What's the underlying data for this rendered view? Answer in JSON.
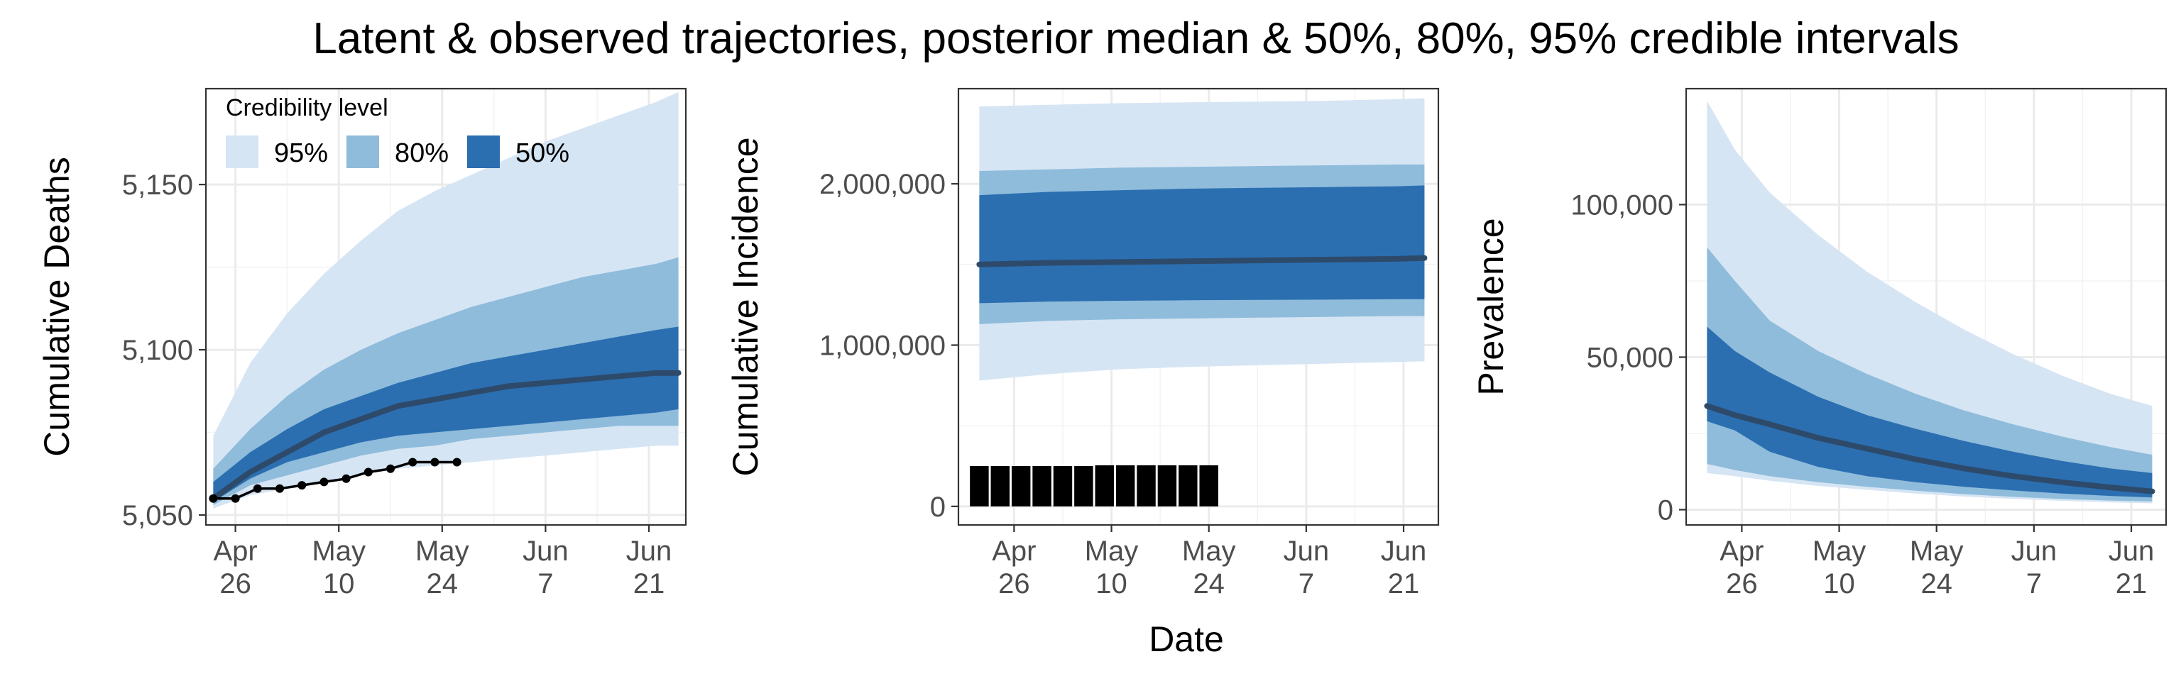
{
  "figure": {
    "title": "Latent & observed trajectories, posterior median & 50%, 80%, 95% credible intervals",
    "shared_xlabel": "Date"
  },
  "colors": {
    "ci95": "#d6e5f4",
    "ci80": "#8fbcdb",
    "ci50": "#2b6fb1",
    "median": "#2e4a6b",
    "observed": "#000000",
    "grid": "#ebebeb",
    "border": "#333333"
  },
  "legend": {
    "title": "Credibility level",
    "items": [
      {
        "label": "95%",
        "color_key": "ci95"
      },
      {
        "label": "80%",
        "color_key": "ci80"
      },
      {
        "label": "50%",
        "color_key": "ci50"
      }
    ]
  },
  "chart_data": [
    {
      "type": "area",
      "panel": "deaths",
      "xlabel": "",
      "ylabel": "Cumulative Deaths",
      "x_axis": "date",
      "xlim": [
        "2020-04-22",
        "2020-06-26"
      ],
      "xticks": [
        {
          "date": "2020-04-26",
          "label": [
            "Apr",
            "26"
          ]
        },
        {
          "date": "2020-05-10",
          "label": [
            "May",
            "10"
          ]
        },
        {
          "date": "2020-05-24",
          "label": [
            "May",
            "24"
          ]
        },
        {
          "date": "2020-06-07",
          "label": [
            "Jun",
            "7"
          ]
        },
        {
          "date": "2020-06-21",
          "label": [
            "Jun",
            "21"
          ]
        }
      ],
      "ylim": [
        5047,
        5179
      ],
      "yticks": [
        {
          "value": 5050,
          "label": "5,050"
        },
        {
          "value": 5100,
          "label": "5,100"
        },
        {
          "value": 5150,
          "label": "5,150"
        }
      ],
      "x": [
        "2020-04-23",
        "2020-04-28",
        "2020-05-03",
        "2020-05-08",
        "2020-05-13",
        "2020-05-18",
        "2020-05-23",
        "2020-05-28",
        "2020-06-02",
        "2020-06-07",
        "2020-06-12",
        "2020-06-17",
        "2020-06-22",
        "2020-06-25"
      ],
      "series": [
        {
          "name": "95%",
          "lower": [
            5052,
            5056,
            5058,
            5060,
            5062,
            5064,
            5065,
            5066,
            5067,
            5068,
            5069,
            5070,
            5071,
            5071
          ],
          "upper": [
            5074,
            5096,
            5111,
            5123,
            5133,
            5142,
            5148,
            5153,
            5158,
            5163,
            5167,
            5171,
            5175,
            5178
          ]
        },
        {
          "name": "80%",
          "lower": [
            5053,
            5059,
            5062,
            5065,
            5068,
            5070,
            5071,
            5073,
            5074,
            5075,
            5076,
            5077,
            5077,
            5077
          ],
          "upper": [
            5064,
            5076,
            5086,
            5094,
            5100,
            5105,
            5109,
            5113,
            5116,
            5119,
            5122,
            5124,
            5126,
            5128
          ]
        },
        {
          "name": "50%",
          "lower": [
            5054,
            5061,
            5066,
            5069,
            5072,
            5074,
            5075,
            5076,
            5077,
            5078,
            5079,
            5080,
            5081,
            5082
          ],
          "upper": [
            5060,
            5069,
            5076,
            5082,
            5086,
            5090,
            5093,
            5096,
            5098,
            5100,
            5102,
            5104,
            5106,
            5107
          ]
        },
        {
          "name": "median",
          "values": [
            5055,
            5063,
            5069,
            5075,
            5079,
            5083,
            5085,
            5087,
            5089,
            5090,
            5091,
            5092,
            5093,
            5093
          ]
        }
      ],
      "observed": {
        "x": [
          "2020-04-23",
          "2020-04-26",
          "2020-04-29",
          "2020-05-02",
          "2020-05-05",
          "2020-05-08",
          "2020-05-11",
          "2020-05-14",
          "2020-05-17",
          "2020-05-20",
          "2020-05-23",
          "2020-05-26"
        ],
        "values": [
          5055,
          5055,
          5058,
          5058,
          5059,
          5060,
          5061,
          5063,
          5064,
          5066,
          5066,
          5066
        ]
      }
    },
    {
      "type": "area",
      "panel": "incidence",
      "xlabel": "Date",
      "ylabel": "Cumulative Incidence",
      "x_axis": "date",
      "xlim": [
        "2020-04-18",
        "2020-06-26"
      ],
      "xticks": [
        {
          "date": "2020-04-26",
          "label": [
            "Apr",
            "26"
          ]
        },
        {
          "date": "2020-05-10",
          "label": [
            "May",
            "10"
          ]
        },
        {
          "date": "2020-05-24",
          "label": [
            "May",
            "24"
          ]
        },
        {
          "date": "2020-06-07",
          "label": [
            "Jun",
            "7"
          ]
        },
        {
          "date": "2020-06-21",
          "label": [
            "Jun",
            "21"
          ]
        }
      ],
      "ylim": [
        -115000,
        2590000
      ],
      "yticks": [
        {
          "value": 0,
          "label": "0"
        },
        {
          "value": 1000000,
          "label": "1,000,000"
        },
        {
          "value": 2000000,
          "label": "2,000,000"
        }
      ],
      "x": [
        "2020-04-21",
        "2020-05-01",
        "2020-05-11",
        "2020-05-21",
        "2020-05-31",
        "2020-06-10",
        "2020-06-20",
        "2020-06-24"
      ],
      "series": [
        {
          "name": "95%",
          "lower": [
            780000,
            820000,
            850000,
            865000,
            875000,
            885000,
            895000,
            900000
          ],
          "upper": [
            2480000,
            2490000,
            2500000,
            2505000,
            2510000,
            2515000,
            2525000,
            2530000
          ]
        },
        {
          "name": "80%",
          "lower": [
            1130000,
            1150000,
            1160000,
            1165000,
            1170000,
            1175000,
            1180000,
            1180000
          ],
          "upper": [
            2080000,
            2090000,
            2100000,
            2105000,
            2110000,
            2115000,
            2120000,
            2120000
          ]
        },
        {
          "name": "50%",
          "lower": [
            1260000,
            1270000,
            1275000,
            1278000,
            1280000,
            1282000,
            1285000,
            1285000
          ],
          "upper": [
            1930000,
            1950000,
            1960000,
            1970000,
            1975000,
            1980000,
            1985000,
            1990000
          ]
        },
        {
          "name": "median",
          "values": [
            1500000,
            1510000,
            1515000,
            1520000,
            1525000,
            1530000,
            1535000,
            1540000
          ]
        }
      ],
      "observed_bars": {
        "x": [
          "2020-04-21",
          "2020-04-24",
          "2020-04-27",
          "2020-04-30",
          "2020-05-03",
          "2020-05-06",
          "2020-05-09",
          "2020-05-12",
          "2020-05-15",
          "2020-05-18",
          "2020-05-21",
          "2020-05-24"
        ],
        "values": [
          250000,
          250000,
          250000,
          250000,
          250000,
          250000,
          255000,
          255000,
          255000,
          255000,
          255000,
          255000
        ]
      }
    },
    {
      "type": "area",
      "panel": "prevalence",
      "xlabel": "",
      "ylabel": "Prevalence",
      "x_axis": "date",
      "xlim": [
        "2020-04-18",
        "2020-06-26"
      ],
      "xticks": [
        {
          "date": "2020-04-26",
          "label": [
            "Apr",
            "26"
          ]
        },
        {
          "date": "2020-05-10",
          "label": [
            "May",
            "10"
          ]
        },
        {
          "date": "2020-05-24",
          "label": [
            "May",
            "24"
          ]
        },
        {
          "date": "2020-06-07",
          "label": [
            "Jun",
            "7"
          ]
        },
        {
          "date": "2020-06-21",
          "label": [
            "Jun",
            "21"
          ]
        }
      ],
      "ylim": [
        -5000,
        138000
      ],
      "yticks": [
        {
          "value": 0,
          "label": "0"
        },
        {
          "value": 50000,
          "label": "50,000"
        },
        {
          "value": 100000,
          "label": "100,000"
        }
      ],
      "x": [
        "2020-04-21",
        "2020-04-25",
        "2020-04-30",
        "2020-05-07",
        "2020-05-14",
        "2020-05-21",
        "2020-05-28",
        "2020-06-04",
        "2020-06-11",
        "2020-06-18",
        "2020-06-24"
      ],
      "series": [
        {
          "name": "95%",
          "lower": [
            12000,
            11000,
            9500,
            7800,
            6500,
            5300,
            4300,
            3500,
            2900,
            2400,
            2100
          ],
          "upper": [
            134000,
            118000,
            104000,
            90000,
            78000,
            68000,
            59000,
            51000,
            44000,
            38000,
            34000
          ]
        },
        {
          "name": "80%",
          "lower": [
            15000,
            13000,
            11000,
            9000,
            7500,
            6200,
            5100,
            4200,
            3500,
            3000,
            2700
          ],
          "upper": [
            86000,
            75000,
            62000,
            52000,
            44500,
            38000,
            32500,
            28000,
            24000,
            20500,
            18000
          ]
        },
        {
          "name": "50%",
          "lower": [
            29000,
            26000,
            19000,
            14000,
            11000,
            9000,
            7500,
            6300,
            5300,
            4500,
            4000
          ],
          "upper": [
            60000,
            52000,
            45000,
            37000,
            31000,
            26500,
            22500,
            19000,
            16000,
            13500,
            12000
          ]
        },
        {
          "name": "median",
          "values": [
            34000,
            31000,
            28000,
            23500,
            20000,
            16500,
            13500,
            11000,
            9000,
            7300,
            6000
          ]
        }
      ]
    }
  ]
}
